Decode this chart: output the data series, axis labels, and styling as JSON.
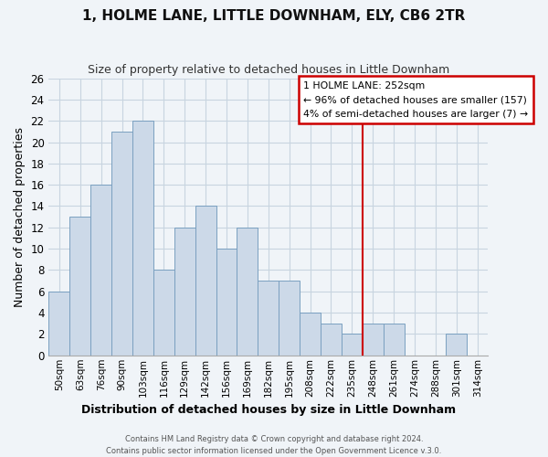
{
  "title": "1, HOLME LANE, LITTLE DOWNHAM, ELY, CB6 2TR",
  "subtitle": "Size of property relative to detached houses in Little Downham",
  "xlabel": "Distribution of detached houses by size in Little Downham",
  "ylabel": "Number of detached properties",
  "bar_color": "#ccd9e8",
  "bar_edge_color": "#7aa0c0",
  "bins": [
    "50sqm",
    "63sqm",
    "76sqm",
    "90sqm",
    "103sqm",
    "116sqm",
    "129sqm",
    "142sqm",
    "156sqm",
    "169sqm",
    "182sqm",
    "195sqm",
    "208sqm",
    "222sqm",
    "235sqm",
    "248sqm",
    "261sqm",
    "274sqm",
    "288sqm",
    "301sqm",
    "314sqm"
  ],
  "values": [
    6,
    13,
    16,
    21,
    22,
    8,
    12,
    14,
    10,
    12,
    7,
    7,
    4,
    3,
    2,
    3,
    3,
    0,
    0,
    2,
    0
  ],
  "ylim": [
    0,
    26
  ],
  "yticks": [
    0,
    2,
    4,
    6,
    8,
    10,
    12,
    14,
    16,
    18,
    20,
    22,
    24,
    26
  ],
  "property_line_color": "#cc0000",
  "property_line_bin_index": 15,
  "legend_title": "1 HOLME LANE: 252sqm",
  "legend_line1": "← 96% of detached houses are smaller (157)",
  "legend_line2": "4% of semi-detached houses are larger (7) →",
  "legend_box_color": "#ffffff",
  "legend_box_edge_color": "#cc0000",
  "footer1": "Contains HM Land Registry data © Crown copyright and database right 2024.",
  "footer2": "Contains public sector information licensed under the Open Government Licence v.3.0.",
  "background_color": "#f0f4f8",
  "grid_color": "#c8d4e0"
}
